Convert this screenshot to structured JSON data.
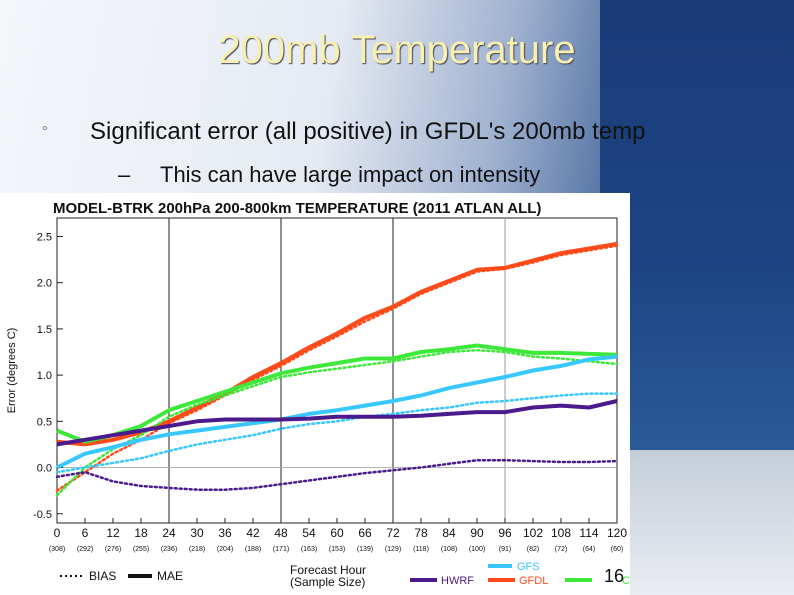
{
  "slide": {
    "title": "200mb Temperature",
    "bullets": [
      {
        "text": "Significant error (all positive) in GFDL's 200mb temp",
        "marker": "◦"
      },
      {
        "text": "This can have large impact on intensity",
        "marker": "–"
      }
    ],
    "page_number": "16"
  },
  "colors": {
    "title_text": "#f7f0b0",
    "slide_dark_blue": "#1b3a78",
    "GFS": "#38c8ff",
    "GFDL": "#ff4a1a",
    "HWRF": "#4b1a8c",
    "CTC": "#3ee83a"
  },
  "chart_data": {
    "type": "line",
    "title": "MODEL-BTRK 200hPa 200-800km TEMPERATURE (2011 ATLAN ALL)",
    "xlabel": "Forecast Hour",
    "xlabel2": "(Sample Size)",
    "ylabel": "Error (degrees C)",
    "x": [
      0,
      6,
      12,
      18,
      24,
      30,
      36,
      42,
      48,
      54,
      60,
      66,
      72,
      78,
      84,
      90,
      96,
      102,
      108,
      114,
      120
    ],
    "x_tick_labels": [
      "0",
      "6",
      "12",
      "18",
      "24",
      "30",
      "36",
      "42",
      "48",
      "54",
      "60",
      "66",
      "72",
      "78",
      "84",
      "90",
      "96",
      "102",
      "108",
      "114",
      "120"
    ],
    "sample_sizes": [
      "(308)",
      "(292)",
      "(276)",
      "(255)",
      "(236)",
      "(218)",
      "(204)",
      "(188)",
      "(171)",
      "(163)",
      "(153)",
      "(139)",
      "(129)",
      "(118)",
      "(108)",
      "(100)",
      "(91)",
      "(82)",
      "(72)",
      "(64)",
      "(60)"
    ],
    "ylim": [
      -0.6,
      2.7
    ],
    "y_ticks": [
      -0.5,
      0.0,
      0.5,
      1.0,
      1.5,
      2.0,
      2.5
    ],
    "y_tick_labels": [
      "-0.5",
      "0.0",
      "0.5",
      "1.0",
      "1.5",
      "2.0",
      "2.5"
    ],
    "vertical_lines": [
      24,
      48,
      72,
      96
    ],
    "legend_styles": [
      {
        "label": "BIAS",
        "style": "dotted"
      },
      {
        "label": "MAE",
        "style": "solid"
      }
    ],
    "series": [
      {
        "name": "HWRF",
        "color": "#4b1a8c",
        "mae": [
          0.25,
          0.3,
          0.35,
          0.4,
          0.45,
          0.5,
          0.52,
          0.52,
          0.52,
          0.53,
          0.55,
          0.55,
          0.55,
          0.56,
          0.58,
          0.6,
          0.6,
          0.65,
          0.67,
          0.65,
          0.72
        ],
        "bias": [
          -0.1,
          -0.05,
          -0.15,
          -0.2,
          -0.22,
          -0.24,
          -0.24,
          -0.22,
          -0.18,
          -0.14,
          -0.1,
          -0.06,
          -0.03,
          0.0,
          0.04,
          0.08,
          0.08,
          0.07,
          0.06,
          0.06,
          0.07
        ]
      },
      {
        "name": "GFDL",
        "color": "#ff4a1a",
        "mae": [
          0.28,
          0.25,
          0.3,
          0.38,
          0.5,
          0.65,
          0.8,
          0.98,
          1.13,
          1.3,
          1.45,
          1.62,
          1.74,
          1.9,
          2.02,
          2.14,
          2.16,
          2.24,
          2.32,
          2.37,
          2.42
        ],
        "bias": [
          -0.25,
          -0.05,
          0.15,
          0.3,
          0.48,
          0.62,
          0.78,
          0.95,
          1.1,
          1.27,
          1.42,
          1.58,
          1.72,
          1.88,
          2.0,
          2.12,
          2.15,
          2.22,
          2.3,
          2.35,
          2.4
        ]
      },
      {
        "name": "GFS",
        "color": "#38c8ff",
        "mae": [
          0.0,
          0.15,
          0.22,
          0.3,
          0.36,
          0.4,
          0.44,
          0.48,
          0.52,
          0.58,
          0.62,
          0.67,
          0.72,
          0.78,
          0.86,
          0.92,
          0.98,
          1.05,
          1.1,
          1.17,
          1.2
        ],
        "bias": [
          -0.05,
          0.0,
          0.05,
          0.1,
          0.18,
          0.25,
          0.3,
          0.35,
          0.42,
          0.47,
          0.5,
          0.55,
          0.58,
          0.62,
          0.65,
          0.7,
          0.72,
          0.75,
          0.78,
          0.8,
          0.8
        ]
      },
      {
        "name": "CTC",
        "label_visible": "C",
        "color": "#3ee83a",
        "mae": [
          0.4,
          0.28,
          0.35,
          0.45,
          0.62,
          0.72,
          0.82,
          0.92,
          1.02,
          1.08,
          1.13,
          1.18,
          1.18,
          1.25,
          1.28,
          1.32,
          1.28,
          1.24,
          1.24,
          1.23,
          1.22
        ],
        "bias": [
          -0.3,
          0.0,
          0.2,
          0.35,
          0.55,
          0.68,
          0.78,
          0.88,
          0.98,
          1.03,
          1.07,
          1.11,
          1.15,
          1.2,
          1.25,
          1.27,
          1.25,
          1.2,
          1.18,
          1.15,
          1.12
        ]
      }
    ]
  }
}
